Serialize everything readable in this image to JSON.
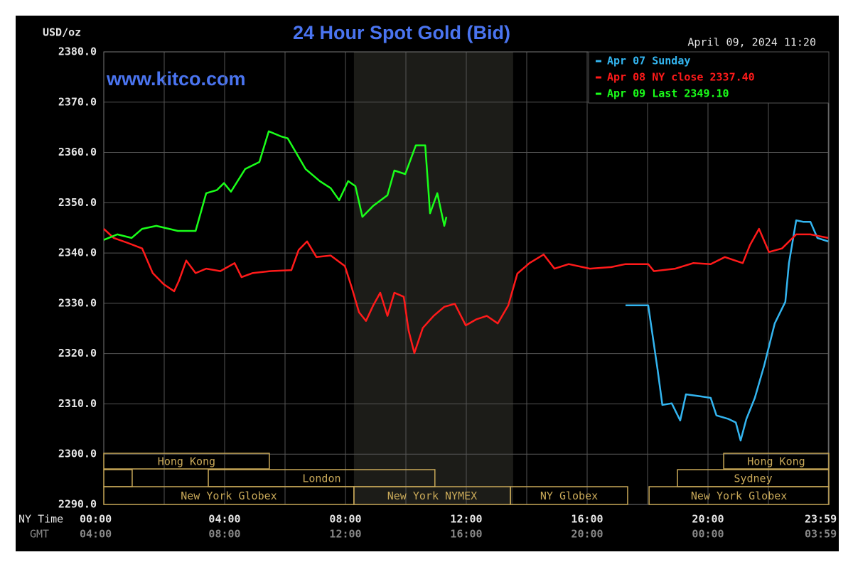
{
  "chart_data": {
    "type": "line",
    "title": "24 Hour Spot Gold (Bid)",
    "unit_label": "USD/oz",
    "timestamp": "April 09, 2024 11:20",
    "watermark": "www.kitco.com",
    "x_axis_label": "NY Time",
    "gmt_axis_label": "GMT",
    "xlim": [
      0,
      24
    ],
    "xticks": [
      {
        "value": 0,
        "label": "00:00"
      },
      {
        "value": 4,
        "label": "04:00"
      },
      {
        "value": 8,
        "label": "08:00"
      },
      {
        "value": 12,
        "label": "12:00"
      },
      {
        "value": 16,
        "label": "16:00"
      },
      {
        "value": 20,
        "label": "20:00"
      },
      {
        "value": 23.98,
        "label": "23:59"
      }
    ],
    "gmt_labels": [
      "04:00",
      "08:00",
      "12:00",
      "16:00",
      "20:00",
      "00:00",
      "03:59"
    ],
    "x_minor_grid": [
      2,
      6,
      10,
      14,
      18,
      22
    ],
    "ylim": [
      2290,
      2380
    ],
    "yticks": [
      {
        "value": 2290,
        "label": "2290.0"
      },
      {
        "value": 2300,
        "label": "2300.0"
      },
      {
        "value": 2310,
        "label": "2310.0"
      },
      {
        "value": 2320,
        "label": "2320.0"
      },
      {
        "value": 2330,
        "label": "2330.0"
      },
      {
        "value": 2340,
        "label": "2340.0"
      },
      {
        "value": 2350,
        "label": "2350.0"
      },
      {
        "value": 2360,
        "label": "2360.0"
      },
      {
        "value": 2370,
        "label": "2370.0"
      },
      {
        "value": 2380,
        "label": "2380.0"
      }
    ],
    "grid": true,
    "shaded_region": [
      8.28,
      13.55
    ],
    "session_color": "#c8a858",
    "sessions": [
      [
        {
          "label": "Hong Kong",
          "start": 0,
          "end": 5.48
        },
        {
          "label": "Hong Kong",
          "start": 20.52,
          "end": 24
        }
      ],
      [
        {
          "label": null,
          "start": 0,
          "end": 0.94
        },
        {
          "label": "London",
          "start": 3.46,
          "end": 10.96
        },
        {
          "label": "Sydney",
          "start": 18.99,
          "end": 24
        }
      ],
      [
        {
          "label": "New York Globex",
          "start": 0,
          "end": 8.28
        },
        {
          "label": "New York NYMEX",
          "start": 8.28,
          "end": 13.46
        },
        {
          "label": "NY Globex",
          "start": 13.46,
          "end": 17.34
        },
        {
          "label": "New York Globex",
          "start": 18.05,
          "end": 24
        }
      ]
    ],
    "legend": "top-right",
    "series": [
      {
        "name": "Apr 07 Sunday",
        "color": "#33b5f0",
        "x": [
          17.27,
          18.02,
          18.09,
          18.33,
          18.49,
          18.8,
          19.08,
          19.27,
          19.74,
          20.09,
          20.28,
          20.68,
          20.92,
          21.08,
          21.27,
          21.55,
          21.86,
          22.21,
          22.56,
          22.68,
          22.92,
          23.15,
          23.39,
          23.62,
          23.98
        ],
        "values": [
          2329.6,
          2329.6,
          2326.8,
          2316.9,
          2309.8,
          2310.1,
          2306.7,
          2311.9,
          2311.5,
          2311.2,
          2307.7,
          2307.0,
          2306.3,
          2302.7,
          2307.0,
          2311.2,
          2317.6,
          2326.0,
          2330.3,
          2338.0,
          2346.5,
          2346.2,
          2346.2,
          2343.0,
          2342.3
        ]
      },
      {
        "name": "Apr 08 NY close 2337.40",
        "color": "#ff1a1a",
        "x": [
          0,
          0.33,
          0.8,
          1.27,
          1.62,
          1.98,
          2.33,
          2.49,
          2.73,
          3.04,
          3.39,
          3.86,
          4.33,
          4.56,
          4.92,
          5.5,
          6.21,
          6.45,
          6.73,
          7.04,
          7.51,
          7.98,
          8.21,
          8.45,
          8.68,
          8.92,
          9.15,
          9.39,
          9.62,
          9.93,
          10.09,
          10.28,
          10.56,
          10.92,
          11.27,
          11.62,
          11.98,
          12.33,
          12.68,
          13.04,
          13.39,
          13.69,
          14.09,
          14.56,
          14.92,
          15.39,
          16.09,
          16.8,
          17.27,
          18.02,
          18.21,
          18.92,
          19.51,
          20.09,
          20.56,
          21.15,
          21.39,
          21.69,
          22.02,
          22.45,
          22.92,
          23.39,
          23.98
        ],
        "values": [
          2344.8,
          2343.0,
          2342.0,
          2340.9,
          2336.0,
          2333.8,
          2332.4,
          2334.5,
          2338.5,
          2336.0,
          2336.9,
          2336.4,
          2338.0,
          2335.2,
          2336.0,
          2336.4,
          2336.6,
          2340.6,
          2342.3,
          2339.2,
          2339.5,
          2337.4,
          2333.1,
          2328.2,
          2326.5,
          2329.6,
          2332.1,
          2327.5,
          2332.1,
          2331.3,
          2324.6,
          2320.1,
          2325.1,
          2327.5,
          2329.3,
          2329.9,
          2325.6,
          2326.8,
          2327.5,
          2326.0,
          2329.6,
          2335.9,
          2338.0,
          2339.7,
          2336.9,
          2337.8,
          2336.9,
          2337.2,
          2337.8,
          2337.8,
          2336.4,
          2336.9,
          2338.0,
          2337.8,
          2339.2,
          2338.0,
          2341.6,
          2344.8,
          2340.2,
          2340.9,
          2343.7,
          2343.7,
          2343.0
        ]
      },
      {
        "name": "Apr 09 Last 2349.10",
        "color": "#1aff1a",
        "x": [
          0,
          0.45,
          0.92,
          1.27,
          1.74,
          2.45,
          3.04,
          3.39,
          3.74,
          3.98,
          4.21,
          4.68,
          5.15,
          5.46,
          5.86,
          6.09,
          6.68,
          7.15,
          7.51,
          7.79,
          8.09,
          8.33,
          8.56,
          8.92,
          9.39,
          9.62,
          9.98,
          10.33,
          10.64,
          10.8,
          11.04,
          11.27,
          11.34
        ],
        "values": [
          2342.6,
          2343.7,
          2343.0,
          2344.8,
          2345.4,
          2344.4,
          2344.4,
          2351.9,
          2352.5,
          2353.9,
          2352.2,
          2356.7,
          2358.1,
          2364.2,
          2363.2,
          2362.8,
          2356.7,
          2354.3,
          2352.9,
          2350.5,
          2354.3,
          2353.3,
          2347.2,
          2349.4,
          2351.5,
          2356.4,
          2355.7,
          2361.4,
          2361.4,
          2347.9,
          2351.9,
          2345.4,
          2347.2
        ]
      }
    ]
  }
}
